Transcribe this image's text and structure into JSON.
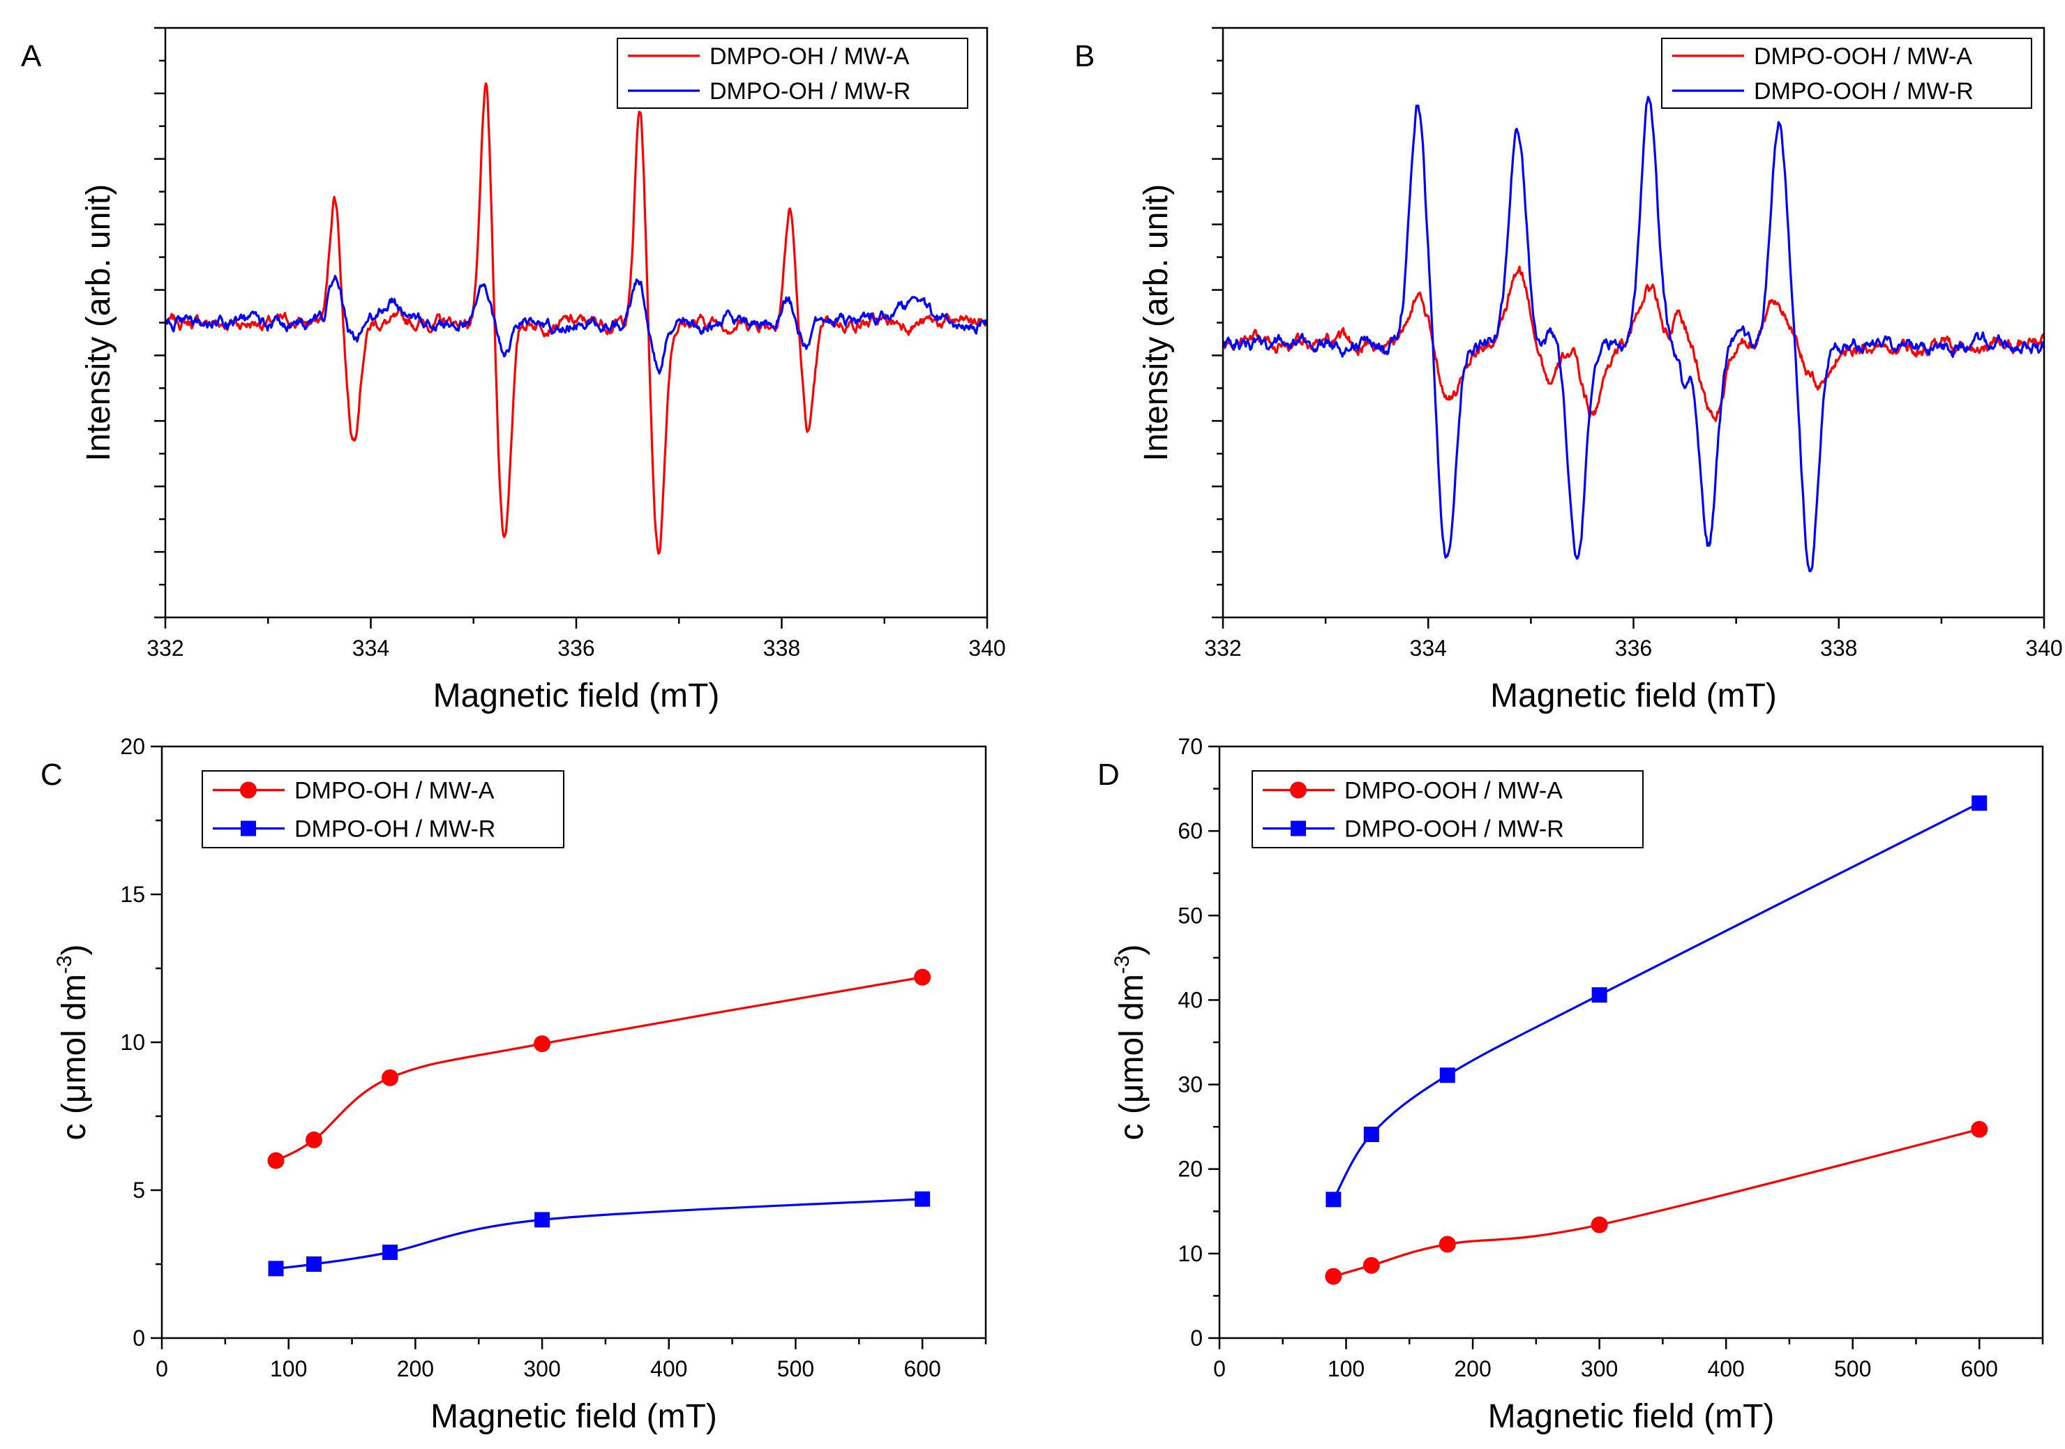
{
  "chart_data": [
    {
      "panel": "A",
      "type": "line",
      "xlabel": "Magnetic field (mT)",
      "ylabel": "Intensity (arb. unit)",
      "xlim": [
        332,
        340
      ],
      "ylim": [
        -4.4,
        4.4
      ],
      "xticks": [
        332,
        334,
        336,
        338,
        340
      ],
      "tick_labels": [
        "332",
        "334",
        "336",
        "338",
        "340"
      ],
      "yticklabels": false,
      "legend_position": "top-right",
      "legend_marker": "line",
      "series": [
        {
          "name": "DMPO-OH / MW-A",
          "color": "#ff0000",
          "peaks": [
            {
              "x": 333.65,
              "amp": 1.9,
              "w": 0.05
            },
            {
              "x": 333.83,
              "amp": -1.7,
              "w": 0.06
            },
            {
              "x": 335.12,
              "amp": 3.5,
              "w": 0.05
            },
            {
              "x": 335.3,
              "amp": -3.2,
              "w": 0.06
            },
            {
              "x": 336.62,
              "amp": 3.2,
              "w": 0.05
            },
            {
              "x": 336.8,
              "amp": -3.4,
              "w": 0.06
            },
            {
              "x": 338.08,
              "amp": 1.7,
              "w": 0.05
            },
            {
              "x": 338.26,
              "amp": -1.6,
              "w": 0.06
            }
          ]
        },
        {
          "name": "DMPO-OH / MW-R",
          "color": "#0000ff",
          "peaks": [
            {
              "x": 333.65,
              "amp": 0.6,
              "w": 0.06
            },
            {
              "x": 333.85,
              "amp": -0.3,
              "w": 0.06
            },
            {
              "x": 334.2,
              "amp": 0.3,
              "w": 0.1
            },
            {
              "x": 335.1,
              "amp": 0.6,
              "w": 0.06
            },
            {
              "x": 335.3,
              "amp": -0.55,
              "w": 0.06
            },
            {
              "x": 336.6,
              "amp": 0.65,
              "w": 0.06
            },
            {
              "x": 336.8,
              "amp": -0.65,
              "w": 0.06
            },
            {
              "x": 338.05,
              "amp": 0.4,
              "w": 0.06
            },
            {
              "x": 338.25,
              "amp": -0.35,
              "w": 0.06
            },
            {
              "x": 339.3,
              "amp": 0.25,
              "w": 0.15
            }
          ]
        }
      ]
    },
    {
      "panel": "B",
      "type": "line",
      "xlabel": "Magnetic field (mT)",
      "ylabel": "Intensity (arb. unit)",
      "xlim": [
        332,
        340
      ],
      "ylim": [
        -3.7,
        4.3
      ],
      "xticks": [
        332,
        334,
        336,
        338,
        340
      ],
      "tick_labels": [
        "332",
        "334",
        "336",
        "338",
        "340"
      ],
      "yticklabels": false,
      "legend_position": "top-right",
      "legend_marker": "line",
      "series": [
        {
          "name": "DMPO-OOH / MW-A",
          "color": "#ff0000",
          "peaks": [
            {
              "x": 333.88,
              "amp": 0.65,
              "w": 0.1
            },
            {
              "x": 334.22,
              "amp": -0.75,
              "w": 0.1
            },
            {
              "x": 334.88,
              "amp": 0.95,
              "w": 0.1
            },
            {
              "x": 335.2,
              "amp": -0.5,
              "w": 0.08
            },
            {
              "x": 335.6,
              "amp": -0.9,
              "w": 0.1
            },
            {
              "x": 336.15,
              "amp": 0.8,
              "w": 0.1
            },
            {
              "x": 336.45,
              "amp": 0.35,
              "w": 0.06
            },
            {
              "x": 336.78,
              "amp": -1.0,
              "w": 0.1
            },
            {
              "x": 337.38,
              "amp": 0.65,
              "w": 0.1
            },
            {
              "x": 337.8,
              "amp": -0.55,
              "w": 0.12
            }
          ]
        },
        {
          "name": "DMPO-OOH / MW-R",
          "color": "#0000ff",
          "peaks": [
            {
              "x": 333.9,
              "amp": 3.3,
              "w": 0.08
            },
            {
              "x": 334.18,
              "amp": -2.9,
              "w": 0.08
            },
            {
              "x": 334.87,
              "amp": 3.0,
              "w": 0.08
            },
            {
              "x": 335.22,
              "amp": 0.2,
              "w": 0.05
            },
            {
              "x": 335.45,
              "amp": -3.0,
              "w": 0.08
            },
            {
              "x": 336.15,
              "amp": 3.3,
              "w": 0.08
            },
            {
              "x": 336.5,
              "amp": -0.5,
              "w": 0.05
            },
            {
              "x": 336.73,
              "amp": -2.7,
              "w": 0.08
            },
            {
              "x": 337.42,
              "amp": 3.0,
              "w": 0.08
            },
            {
              "x": 337.72,
              "amp": -3.1,
              "w": 0.08
            }
          ]
        }
      ]
    },
    {
      "panel": "C",
      "type": "line",
      "xlabel": "Magnetic field (mT)",
      "ylabel_main": "c (μmol dm",
      "ylabel_sup": "-3",
      "ylabel_end": ")",
      "xlim": [
        0,
        650
      ],
      "ylim": [
        0,
        20
      ],
      "xticks": [
        0,
        100,
        200,
        300,
        400,
        500,
        600
      ],
      "tick_labels": [
        "0",
        "100",
        "200",
        "300",
        "400",
        "500",
        "600"
      ],
      "yticks": [
        0,
        5,
        10,
        15,
        20
      ],
      "ytick_labels": [
        "0",
        "5",
        "10",
        "15",
        "20"
      ],
      "legend_position": "top-left",
      "legend_marker": "symbol",
      "series": [
        {
          "name": "DMPO-OH / MW-A",
          "color": "#ff0000",
          "marker": "circle",
          "x": [
            90,
            120,
            180,
            300,
            600
          ],
          "y": [
            6.0,
            6.7,
            8.8,
            9.95,
            12.2
          ]
        },
        {
          "name": "DMPO-OH / MW-R",
          "color": "#0000ff",
          "marker": "square",
          "x": [
            90,
            120,
            180,
            300,
            600
          ],
          "y": [
            2.35,
            2.5,
            2.9,
            4.0,
            4.7
          ]
        }
      ]
    },
    {
      "panel": "D",
      "type": "line",
      "xlabel": "Magnetic field (mT)",
      "ylabel_main": "c (μmol dm",
      "ylabel_sup": "-3",
      "ylabel_end": ")",
      "xlim": [
        0,
        650
      ],
      "ylim": [
        0,
        70
      ],
      "xticks": [
        0,
        100,
        200,
        300,
        400,
        500,
        600
      ],
      "tick_labels": [
        "0",
        "100",
        "200",
        "300",
        "400",
        "500",
        "600"
      ],
      "yticks": [
        0,
        10,
        20,
        30,
        40,
        50,
        60,
        70
      ],
      "ytick_labels": [
        "0",
        "10",
        "20",
        "30",
        "40",
        "50",
        "60",
        "70"
      ],
      "legend_position": "top-left",
      "legend_marker": "symbol",
      "series": [
        {
          "name": "DMPO-OOH / MW-A",
          "color": "#ff0000",
          "marker": "circle",
          "x": [
            90,
            120,
            180,
            300,
            600
          ],
          "y": [
            7.3,
            8.6,
            11.1,
            13.4,
            24.7
          ]
        },
        {
          "name": "DMPO-OOH / MW-R",
          "color": "#0000ff",
          "marker": "square",
          "x": [
            90,
            120,
            180,
            300,
            600
          ],
          "y": [
            16.4,
            24.1,
            31.1,
            40.6,
            63.3
          ]
        }
      ]
    }
  ]
}
